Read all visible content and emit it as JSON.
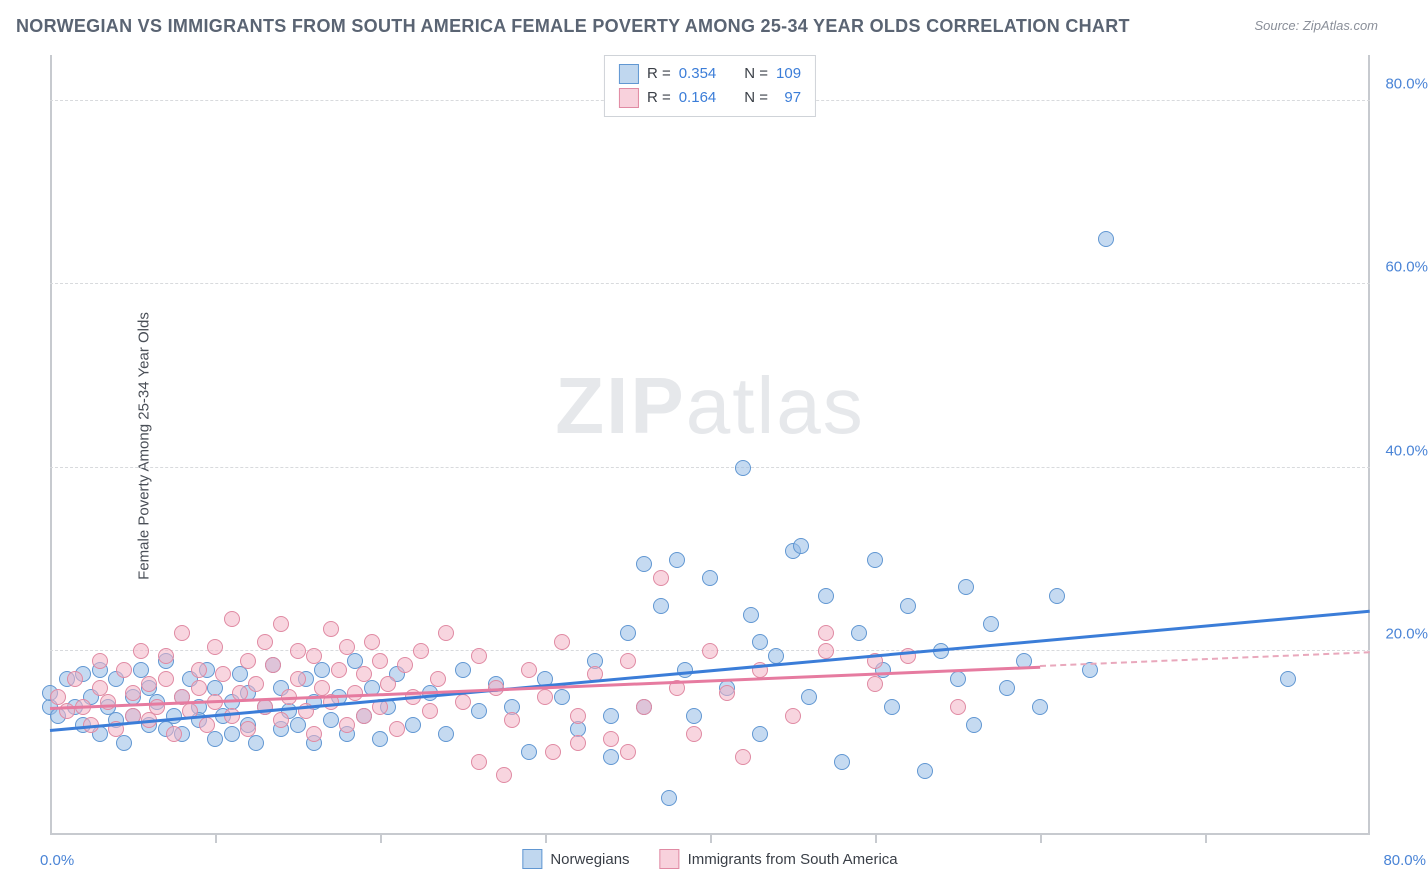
{
  "title": "NORWEGIAN VS IMMIGRANTS FROM SOUTH AMERICA FEMALE POVERTY AMONG 25-34 YEAR OLDS CORRELATION CHART",
  "source": "Source: ZipAtlas.com",
  "ylabel": "Female Poverty Among 25-34 Year Olds",
  "watermark_bold": "ZIP",
  "watermark_rest": "atlas",
  "chart": {
    "type": "scatter",
    "xlim": [
      0,
      80
    ],
    "ylim": [
      0,
      85
    ],
    "ytick_values": [
      20,
      40,
      60,
      80
    ],
    "ytick_labels": [
      "20.0%",
      "40.0%",
      "60.0%",
      "80.0%"
    ],
    "xtick_positions": [
      10,
      20,
      30,
      40,
      50,
      60,
      70
    ],
    "x_axis_left_label": "0.0%",
    "x_axis_right_label": "80.0%",
    "grid_color": "#d8dadd",
    "axis_color": "#c7cacf",
    "background_color": "#ffffff",
    "point_radius": 8,
    "series": [
      {
        "name": "Norwegians",
        "color_fill": "rgba(150,188,229,0.55)",
        "color_stroke": "#6197d2",
        "trend_color": "#3b7dd8",
        "R": 0.354,
        "N": 109,
        "trend": {
          "x0": 0,
          "y0": 11.5,
          "x1": 80,
          "y1": 24.5
        },
        "points": [
          [
            0,
            14
          ],
          [
            0,
            15.5
          ],
          [
            0.5,
            13
          ],
          [
            1,
            17
          ],
          [
            1.5,
            14
          ],
          [
            2,
            12
          ],
          [
            2,
            17.5
          ],
          [
            2.5,
            15
          ],
          [
            3,
            11
          ],
          [
            3,
            18
          ],
          [
            3.5,
            14
          ],
          [
            4,
            12.5
          ],
          [
            4,
            17
          ],
          [
            4.5,
            10
          ],
          [
            5,
            15
          ],
          [
            5,
            13
          ],
          [
            5.5,
            18
          ],
          [
            6,
            12
          ],
          [
            6,
            16
          ],
          [
            6.5,
            14.5
          ],
          [
            7,
            11.5
          ],
          [
            7,
            19
          ],
          [
            7.5,
            13
          ],
          [
            8,
            15
          ],
          [
            8,
            11
          ],
          [
            8.5,
            17
          ],
          [
            9,
            14
          ],
          [
            9,
            12.5
          ],
          [
            9.5,
            18
          ],
          [
            10,
            10.5
          ],
          [
            10,
            16
          ],
          [
            10.5,
            13
          ],
          [
            11,
            14.5
          ],
          [
            11,
            11
          ],
          [
            11.5,
            17.5
          ],
          [
            12,
            12
          ],
          [
            12,
            15.5
          ],
          [
            12.5,
            10
          ],
          [
            13,
            14
          ],
          [
            13.5,
            18.5
          ],
          [
            14,
            11.5
          ],
          [
            14,
            16
          ],
          [
            14.5,
            13.5
          ],
          [
            15,
            12
          ],
          [
            15.5,
            17
          ],
          [
            16,
            10
          ],
          [
            16,
            14.5
          ],
          [
            16.5,
            18
          ],
          [
            17,
            12.5
          ],
          [
            17.5,
            15
          ],
          [
            18,
            11
          ],
          [
            18.5,
            19
          ],
          [
            19,
            13
          ],
          [
            19.5,
            16
          ],
          [
            20,
            10.5
          ],
          [
            20.5,
            14
          ],
          [
            21,
            17.5
          ],
          [
            22,
            12
          ],
          [
            23,
            15.5
          ],
          [
            24,
            11
          ],
          [
            25,
            18
          ],
          [
            26,
            13.5
          ],
          [
            27,
            16.5
          ],
          [
            28,
            14
          ],
          [
            29,
            9
          ],
          [
            30,
            17
          ],
          [
            31,
            15
          ],
          [
            32,
            11.5
          ],
          [
            33,
            19
          ],
          [
            34,
            8.5
          ],
          [
            35,
            22
          ],
          [
            36,
            14
          ],
          [
            37,
            25
          ],
          [
            37.5,
            4
          ],
          [
            38,
            30
          ],
          [
            38.5,
            18
          ],
          [
            39,
            13
          ],
          [
            40,
            28
          ],
          [
            41,
            16
          ],
          [
            42,
            40
          ],
          [
            42.5,
            24
          ],
          [
            43,
            11
          ],
          [
            44,
            19.5
          ],
          [
            45,
            31
          ],
          [
            45.5,
            31.5
          ],
          [
            46,
            15
          ],
          [
            47,
            26
          ],
          [
            48,
            8
          ],
          [
            49,
            22
          ],
          [
            50,
            30
          ],
          [
            50.5,
            18
          ],
          [
            51,
            14
          ],
          [
            52,
            25
          ],
          [
            53,
            7
          ],
          [
            54,
            20
          ],
          [
            55,
            17
          ],
          [
            55.5,
            27
          ],
          [
            56,
            12
          ],
          [
            57,
            23
          ],
          [
            58,
            16
          ],
          [
            59,
            19
          ],
          [
            60,
            14
          ],
          [
            61,
            26
          ],
          [
            63,
            18
          ],
          [
            64,
            65
          ],
          [
            75,
            17
          ],
          [
            43,
            21
          ],
          [
            36,
            29.5
          ],
          [
            34,
            13
          ]
        ]
      },
      {
        "name": "Immigrants from South America",
        "color_fill": "rgba(243,178,197,0.55)",
        "color_stroke": "#e08aa3",
        "trend_color": "#e67ba0",
        "R": 0.164,
        "N": 97,
        "trend_solid": {
          "x0": 0,
          "y0": 14,
          "x1": 60,
          "y1": 18.5
        },
        "trend_dash": {
          "x0": 60,
          "y0": 18.5,
          "x1": 80,
          "y1": 20
        },
        "points": [
          [
            0.5,
            15
          ],
          [
            1,
            13.5
          ],
          [
            1.5,
            17
          ],
          [
            2,
            14
          ],
          [
            2.5,
            12
          ],
          [
            3,
            19
          ],
          [
            3,
            16
          ],
          [
            3.5,
            14.5
          ],
          [
            4,
            11.5
          ],
          [
            4.5,
            18
          ],
          [
            5,
            15.5
          ],
          [
            5,
            13
          ],
          [
            5.5,
            20
          ],
          [
            6,
            16.5
          ],
          [
            6,
            12.5
          ],
          [
            6.5,
            14
          ],
          [
            7,
            19.5
          ],
          [
            7,
            17
          ],
          [
            7.5,
            11
          ],
          [
            8,
            15
          ],
          [
            8,
            22
          ],
          [
            8.5,
            13.5
          ],
          [
            9,
            18
          ],
          [
            9,
            16
          ],
          [
            9.5,
            12
          ],
          [
            10,
            20.5
          ],
          [
            10,
            14.5
          ],
          [
            10.5,
            17.5
          ],
          [
            11,
            13
          ],
          [
            11,
            23.5
          ],
          [
            11.5,
            15.5
          ],
          [
            12,
            19
          ],
          [
            12,
            11.5
          ],
          [
            12.5,
            16.5
          ],
          [
            13,
            14
          ],
          [
            13,
            21
          ],
          [
            13.5,
            18.5
          ],
          [
            14,
            12.5
          ],
          [
            14,
            23
          ],
          [
            14.5,
            15
          ],
          [
            15,
            17
          ],
          [
            15,
            20
          ],
          [
            15.5,
            13.5
          ],
          [
            16,
            19.5
          ],
          [
            16,
            11
          ],
          [
            16.5,
            16
          ],
          [
            17,
            14.5
          ],
          [
            17,
            22.5
          ],
          [
            17.5,
            18
          ],
          [
            18,
            12
          ],
          [
            18,
            20.5
          ],
          [
            18.5,
            15.5
          ],
          [
            19,
            17.5
          ],
          [
            19,
            13
          ],
          [
            19.5,
            21
          ],
          [
            20,
            14
          ],
          [
            20,
            19
          ],
          [
            20.5,
            16.5
          ],
          [
            21,
            11.5
          ],
          [
            21.5,
            18.5
          ],
          [
            22,
            15
          ],
          [
            22.5,
            20
          ],
          [
            23,
            13.5
          ],
          [
            23.5,
            17
          ],
          [
            24,
            22
          ],
          [
            25,
            14.5
          ],
          [
            26,
            19.5
          ],
          [
            27,
            16
          ],
          [
            27.5,
            6.5
          ],
          [
            28,
            12.5
          ],
          [
            29,
            18
          ],
          [
            30,
            15
          ],
          [
            30.5,
            9
          ],
          [
            31,
            21
          ],
          [
            32,
            13
          ],
          [
            33,
            17.5
          ],
          [
            34,
            10.5
          ],
          [
            35,
            19
          ],
          [
            36,
            14
          ],
          [
            37,
            28
          ],
          [
            38,
            16
          ],
          [
            39,
            11
          ],
          [
            40,
            20
          ],
          [
            41,
            15.5
          ],
          [
            42,
            8.5
          ],
          [
            43,
            18
          ],
          [
            45,
            13
          ],
          [
            47,
            22
          ],
          [
            50,
            16.5
          ],
          [
            52,
            19.5
          ],
          [
            55,
            14
          ],
          [
            50,
            19
          ],
          [
            47,
            20
          ],
          [
            35,
            9
          ],
          [
            32,
            10
          ],
          [
            26,
            8
          ]
        ]
      }
    ],
    "legend_top": {
      "r_label": "R =",
      "n_label": "N =",
      "rows": [
        {
          "swatch": "blue",
          "r": "0.354",
          "n": "109"
        },
        {
          "swatch": "pink",
          "r": "0.164",
          "n": "  97"
        }
      ]
    },
    "legend_bottom": [
      {
        "swatch": "blue",
        "label": "Norwegians"
      },
      {
        "swatch": "pink",
        "label": "Immigrants from South America"
      }
    ]
  }
}
